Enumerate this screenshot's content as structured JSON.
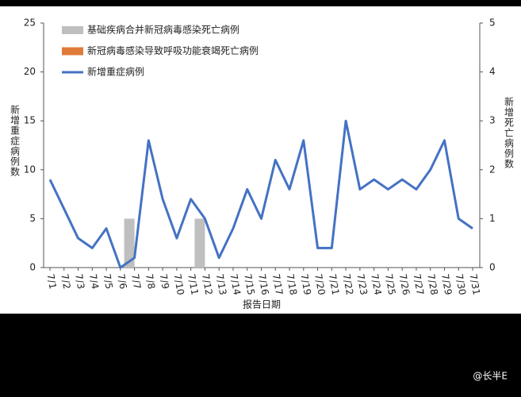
{
  "chart_data": {
    "type": "combo",
    "x_label": "报告日期",
    "y_label": "新增重症病例数",
    "y2_label": "新增死亡病例数",
    "categories": [
      "7/1",
      "7/2",
      "7/3",
      "7/4",
      "7/5",
      "7/6",
      "7/7",
      "7/8",
      "7/9",
      "7/10",
      "7/11",
      "7/12",
      "7/13",
      "7/14",
      "7/15",
      "7/16",
      "7/17",
      "7/18",
      "7/19",
      "7/20",
      "7/21",
      "7/22",
      "7/23",
      "7/24",
      "7/25",
      "7/26",
      "7/27",
      "7/28",
      "7/29",
      "7/30",
      "7/31"
    ],
    "series": [
      {
        "name": "基础疾病合并新冠病毒感染死亡病例",
        "type": "bar",
        "axis": "y2",
        "color": "#bfbfbf",
        "values": [
          0,
          0,
          0,
          0,
          0,
          0,
          1,
          0,
          0,
          0,
          0,
          1,
          0,
          0,
          0,
          0,
          0,
          0,
          0,
          0,
          0,
          0,
          0,
          0,
          0,
          0,
          0,
          0,
          0,
          0,
          0
        ]
      },
      {
        "name": "新冠病毒感染导致呼吸功能衰竭死亡病例",
        "type": "bar",
        "axis": "y2",
        "color": "#e07b39",
        "values": [
          0,
          0,
          0,
          0,
          0,
          0,
          0,
          0,
          0,
          0,
          0,
          0,
          0,
          0,
          0,
          0,
          0,
          0,
          0,
          0,
          0,
          0,
          0,
          0,
          0,
          0,
          0,
          0,
          0,
          0,
          0
        ]
      },
      {
        "name": "新增重症病例",
        "type": "line",
        "axis": "y",
        "color": "#4472c4",
        "values": [
          9,
          6,
          3,
          2,
          4,
          0,
          1,
          13,
          7,
          3,
          7,
          5,
          1,
          4,
          8,
          5,
          11,
          8,
          13,
          2,
          2,
          15,
          8,
          9,
          8,
          9,
          8,
          10,
          13,
          5,
          4
        ]
      }
    ],
    "ylim": [
      0,
      25
    ],
    "yticks": [
      0,
      5,
      10,
      15,
      20,
      25
    ],
    "y2lim": [
      0,
      5
    ],
    "y2ticks": [
      0,
      1,
      2,
      3,
      4,
      5
    ],
    "grid": false,
    "legend": "top-left",
    "watermark": "@长半E"
  }
}
